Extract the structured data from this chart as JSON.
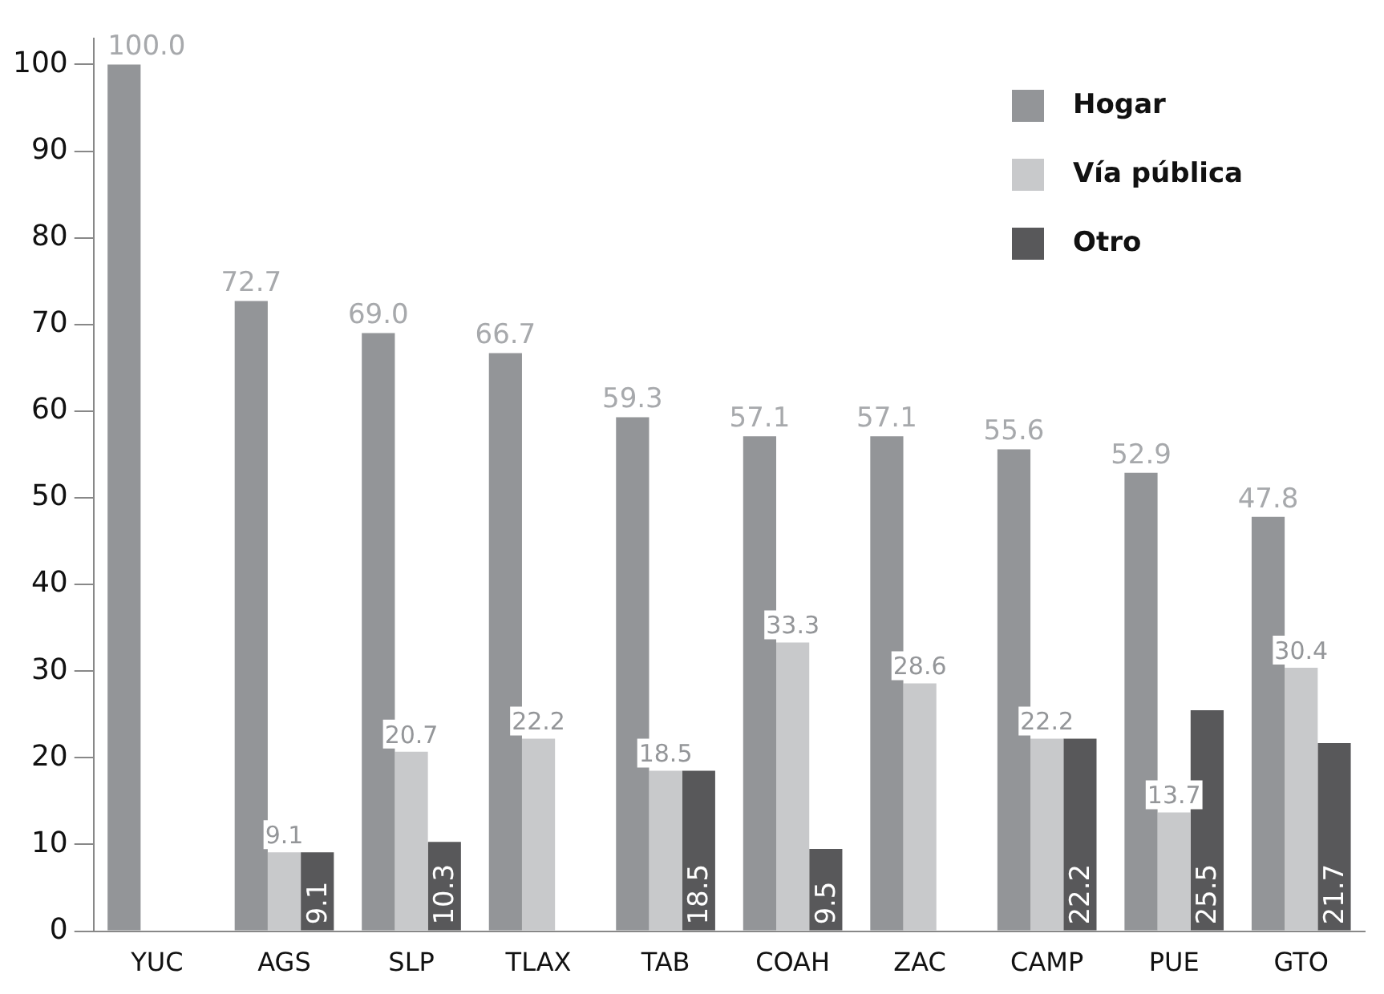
{
  "chart_data": {
    "type": "bar",
    "categories": [
      "YUC",
      "AGS",
      "SLP",
      "TLAX",
      "TAB",
      "COAH",
      "ZAC",
      "CAMP",
      "PUE",
      "GTO"
    ],
    "series": [
      {
        "name": "Hogar",
        "color": "#939598",
        "values": [
          100.0,
          72.7,
          69.0,
          66.7,
          59.3,
          57.1,
          57.1,
          55.6,
          52.9,
          47.8
        ],
        "value_labels": [
          "100.0",
          "72.7",
          "69.0",
          "66.7",
          "59.3",
          "57.1",
          "57.1",
          "55.6",
          "52.9",
          "47.8"
        ]
      },
      {
        "name": "Vía pública",
        "color": "#c8c9cb",
        "values": [
          null,
          9.1,
          20.7,
          22.2,
          18.5,
          33.3,
          28.6,
          22.2,
          13.7,
          30.4
        ],
        "value_labels": [
          null,
          "9.1",
          "20.7",
          "22.2",
          "18.5",
          "33.3",
          "28.6",
          "22.2",
          "13.7",
          "30.4"
        ]
      },
      {
        "name": "Otro",
        "color": "#58585a",
        "values": [
          null,
          9.1,
          10.3,
          null,
          18.5,
          9.5,
          null,
          22.2,
          25.5,
          21.7
        ],
        "value_labels": [
          null,
          "9.1",
          "10.3",
          null,
          "18.5",
          "9.5",
          null,
          "22.2",
          "25.5",
          "21.7"
        ]
      }
    ],
    "ylim": [
      0,
      103
    ],
    "yticks": [
      0,
      10,
      20,
      30,
      40,
      50,
      60,
      70,
      80,
      90,
      100
    ],
    "grid": false,
    "legend": "top right"
  }
}
